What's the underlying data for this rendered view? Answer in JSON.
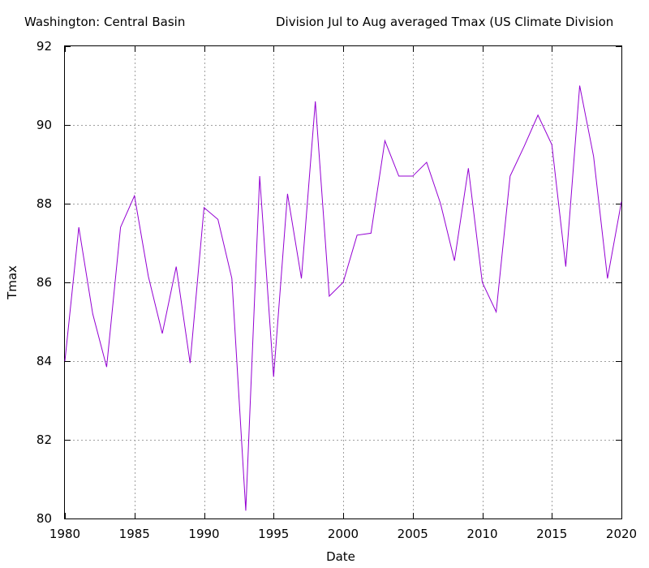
{
  "chart_data": {
    "type": "line",
    "title_left": "Washington: Central Basin",
    "title_right": "Division  Jul to Aug averaged  Tmax  (US Climate Division",
    "xlabel": "Date",
    "ylabel": "Tmax",
    "xlim": [
      1980,
      2020
    ],
    "ylim": [
      80,
      92
    ],
    "xticks": [
      1980,
      1985,
      1990,
      1995,
      2000,
      2005,
      2010,
      2015,
      2020
    ],
    "yticks": [
      80,
      82,
      84,
      86,
      88,
      90,
      92
    ],
    "grid": true,
    "line_color": "#9400d3",
    "x": [
      1980,
      1981,
      1982,
      1983,
      1984,
      1985,
      1986,
      1987,
      1988,
      1989,
      1990,
      1991,
      1992,
      1993,
      1994,
      1995,
      1996,
      1997,
      1998,
      1999,
      2000,
      2001,
      2002,
      2003,
      2004,
      2005,
      2006,
      2007,
      2008,
      2009,
      2010,
      2011,
      2012,
      2013,
      2014,
      2015,
      2016,
      2017,
      2018,
      2019,
      2020
    ],
    "values": [
      84.0,
      87.4,
      85.2,
      83.85,
      87.4,
      88.2,
      86.15,
      84.7,
      86.4,
      83.95,
      87.9,
      87.6,
      86.1,
      80.2,
      88.7,
      83.6,
      88.25,
      86.1,
      90.6,
      85.65,
      86.0,
      87.2,
      87.25,
      89.6,
      88.7,
      88.7,
      89.05,
      88.0,
      86.55,
      88.9,
      86.0,
      85.25,
      88.7,
      89.45,
      90.25,
      89.5,
      86.4,
      91.0,
      89.2,
      86.1,
      88.05
    ]
  }
}
